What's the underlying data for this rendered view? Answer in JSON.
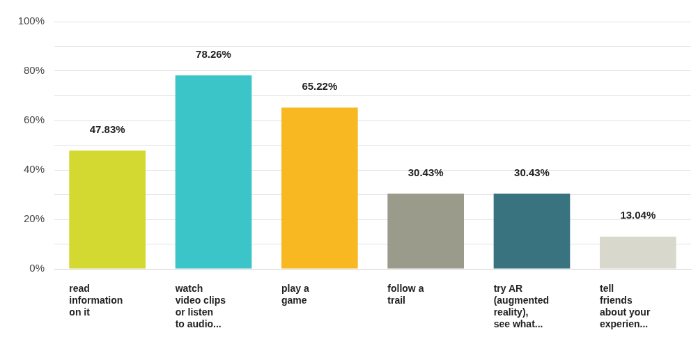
{
  "chart_data": {
    "type": "bar",
    "categories": [
      "read\ninformation\non it",
      "watch\nvideo clips\nor listen\nto audio...",
      "play a\ngame",
      "follow a\ntrail",
      "try AR\n(augmented\nreality),\nsee what...",
      "tell\nfriends\nabout your\nexperien..."
    ],
    "values": [
      47.83,
      78.26,
      65.22,
      30.43,
      30.43,
      13.04
    ],
    "colors": [
      "#d4d932",
      "#3cc5c9",
      "#f8b822",
      "#9a9b8b",
      "#3a7380",
      "#d9d8cc"
    ],
    "value_labels": [
      "47.83%",
      "78.26%",
      "65.22%",
      "30.43%",
      "30.43%",
      "13.04%"
    ],
    "ylim": [
      0,
      100
    ],
    "yticks": [
      {
        "value": 0,
        "label": "0%"
      },
      {
        "value": 10,
        "label": null
      },
      {
        "value": 20,
        "label": "20%"
      },
      {
        "value": 30,
        "label": null
      },
      {
        "value": 40,
        "label": "40%"
      },
      {
        "value": 50,
        "label": null
      },
      {
        "value": 60,
        "label": "60%"
      },
      {
        "value": 70,
        "label": null
      },
      {
        "value": 80,
        "label": "80%"
      },
      {
        "value": 90,
        "label": null
      },
      {
        "value": 100,
        "label": "100%"
      }
    ],
    "grid": "y",
    "legend": false
  }
}
